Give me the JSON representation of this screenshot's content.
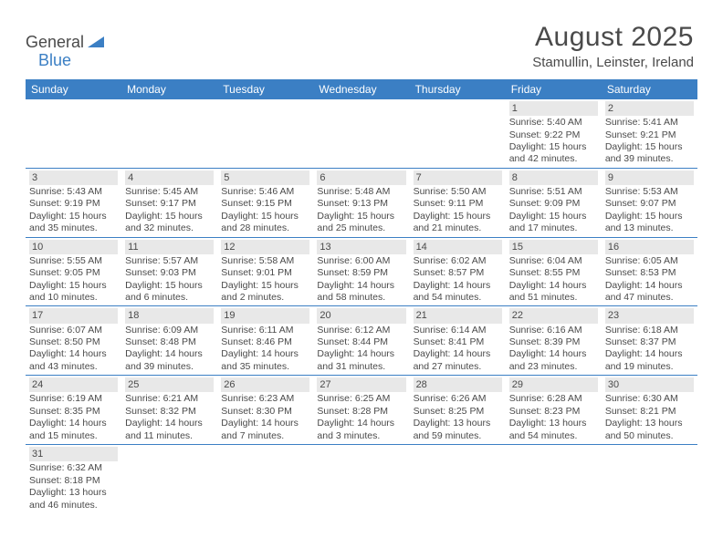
{
  "logo": {
    "part1": "General",
    "part2": "Blue"
  },
  "header": {
    "month": "August 2025",
    "location": "Stamullin, Leinster, Ireland"
  },
  "colors": {
    "accent": "#3b7fc4",
    "cell_num_bg": "#e8e8e8",
    "text": "#4a4a4a"
  },
  "day_names": [
    "Sunday",
    "Monday",
    "Tuesday",
    "Wednesday",
    "Thursday",
    "Friday",
    "Saturday"
  ],
  "weeks": [
    [
      {
        "n": "",
        "sr": "",
        "ss": "",
        "dl": ""
      },
      {
        "n": "",
        "sr": "",
        "ss": "",
        "dl": ""
      },
      {
        "n": "",
        "sr": "",
        "ss": "",
        "dl": ""
      },
      {
        "n": "",
        "sr": "",
        "ss": "",
        "dl": ""
      },
      {
        "n": "",
        "sr": "",
        "ss": "",
        "dl": ""
      },
      {
        "n": "1",
        "sr": "Sunrise: 5:40 AM",
        "ss": "Sunset: 9:22 PM",
        "dl": "Daylight: 15 hours and 42 minutes."
      },
      {
        "n": "2",
        "sr": "Sunrise: 5:41 AM",
        "ss": "Sunset: 9:21 PM",
        "dl": "Daylight: 15 hours and 39 minutes."
      }
    ],
    [
      {
        "n": "3",
        "sr": "Sunrise: 5:43 AM",
        "ss": "Sunset: 9:19 PM",
        "dl": "Daylight: 15 hours and 35 minutes."
      },
      {
        "n": "4",
        "sr": "Sunrise: 5:45 AM",
        "ss": "Sunset: 9:17 PM",
        "dl": "Daylight: 15 hours and 32 minutes."
      },
      {
        "n": "5",
        "sr": "Sunrise: 5:46 AM",
        "ss": "Sunset: 9:15 PM",
        "dl": "Daylight: 15 hours and 28 minutes."
      },
      {
        "n": "6",
        "sr": "Sunrise: 5:48 AM",
        "ss": "Sunset: 9:13 PM",
        "dl": "Daylight: 15 hours and 25 minutes."
      },
      {
        "n": "7",
        "sr": "Sunrise: 5:50 AM",
        "ss": "Sunset: 9:11 PM",
        "dl": "Daylight: 15 hours and 21 minutes."
      },
      {
        "n": "8",
        "sr": "Sunrise: 5:51 AM",
        "ss": "Sunset: 9:09 PM",
        "dl": "Daylight: 15 hours and 17 minutes."
      },
      {
        "n": "9",
        "sr": "Sunrise: 5:53 AM",
        "ss": "Sunset: 9:07 PM",
        "dl": "Daylight: 15 hours and 13 minutes."
      }
    ],
    [
      {
        "n": "10",
        "sr": "Sunrise: 5:55 AM",
        "ss": "Sunset: 9:05 PM",
        "dl": "Daylight: 15 hours and 10 minutes."
      },
      {
        "n": "11",
        "sr": "Sunrise: 5:57 AM",
        "ss": "Sunset: 9:03 PM",
        "dl": "Daylight: 15 hours and 6 minutes."
      },
      {
        "n": "12",
        "sr": "Sunrise: 5:58 AM",
        "ss": "Sunset: 9:01 PM",
        "dl": "Daylight: 15 hours and 2 minutes."
      },
      {
        "n": "13",
        "sr": "Sunrise: 6:00 AM",
        "ss": "Sunset: 8:59 PM",
        "dl": "Daylight: 14 hours and 58 minutes."
      },
      {
        "n": "14",
        "sr": "Sunrise: 6:02 AM",
        "ss": "Sunset: 8:57 PM",
        "dl": "Daylight: 14 hours and 54 minutes."
      },
      {
        "n": "15",
        "sr": "Sunrise: 6:04 AM",
        "ss": "Sunset: 8:55 PM",
        "dl": "Daylight: 14 hours and 51 minutes."
      },
      {
        "n": "16",
        "sr": "Sunrise: 6:05 AM",
        "ss": "Sunset: 8:53 PM",
        "dl": "Daylight: 14 hours and 47 minutes."
      }
    ],
    [
      {
        "n": "17",
        "sr": "Sunrise: 6:07 AM",
        "ss": "Sunset: 8:50 PM",
        "dl": "Daylight: 14 hours and 43 minutes."
      },
      {
        "n": "18",
        "sr": "Sunrise: 6:09 AM",
        "ss": "Sunset: 8:48 PM",
        "dl": "Daylight: 14 hours and 39 minutes."
      },
      {
        "n": "19",
        "sr": "Sunrise: 6:11 AM",
        "ss": "Sunset: 8:46 PM",
        "dl": "Daylight: 14 hours and 35 minutes."
      },
      {
        "n": "20",
        "sr": "Sunrise: 6:12 AM",
        "ss": "Sunset: 8:44 PM",
        "dl": "Daylight: 14 hours and 31 minutes."
      },
      {
        "n": "21",
        "sr": "Sunrise: 6:14 AM",
        "ss": "Sunset: 8:41 PM",
        "dl": "Daylight: 14 hours and 27 minutes."
      },
      {
        "n": "22",
        "sr": "Sunrise: 6:16 AM",
        "ss": "Sunset: 8:39 PM",
        "dl": "Daylight: 14 hours and 23 minutes."
      },
      {
        "n": "23",
        "sr": "Sunrise: 6:18 AM",
        "ss": "Sunset: 8:37 PM",
        "dl": "Daylight: 14 hours and 19 minutes."
      }
    ],
    [
      {
        "n": "24",
        "sr": "Sunrise: 6:19 AM",
        "ss": "Sunset: 8:35 PM",
        "dl": "Daylight: 14 hours and 15 minutes."
      },
      {
        "n": "25",
        "sr": "Sunrise: 6:21 AM",
        "ss": "Sunset: 8:32 PM",
        "dl": "Daylight: 14 hours and 11 minutes."
      },
      {
        "n": "26",
        "sr": "Sunrise: 6:23 AM",
        "ss": "Sunset: 8:30 PM",
        "dl": "Daylight: 14 hours and 7 minutes."
      },
      {
        "n": "27",
        "sr": "Sunrise: 6:25 AM",
        "ss": "Sunset: 8:28 PM",
        "dl": "Daylight: 14 hours and 3 minutes."
      },
      {
        "n": "28",
        "sr": "Sunrise: 6:26 AM",
        "ss": "Sunset: 8:25 PM",
        "dl": "Daylight: 13 hours and 59 minutes."
      },
      {
        "n": "29",
        "sr": "Sunrise: 6:28 AM",
        "ss": "Sunset: 8:23 PM",
        "dl": "Daylight: 13 hours and 54 minutes."
      },
      {
        "n": "30",
        "sr": "Sunrise: 6:30 AM",
        "ss": "Sunset: 8:21 PM",
        "dl": "Daylight: 13 hours and 50 minutes."
      }
    ],
    [
      {
        "n": "31",
        "sr": "Sunrise: 6:32 AM",
        "ss": "Sunset: 8:18 PM",
        "dl": "Daylight: 13 hours and 46 minutes."
      },
      {
        "n": "",
        "sr": "",
        "ss": "",
        "dl": ""
      },
      {
        "n": "",
        "sr": "",
        "ss": "",
        "dl": ""
      },
      {
        "n": "",
        "sr": "",
        "ss": "",
        "dl": ""
      },
      {
        "n": "",
        "sr": "",
        "ss": "",
        "dl": ""
      },
      {
        "n": "",
        "sr": "",
        "ss": "",
        "dl": ""
      },
      {
        "n": "",
        "sr": "",
        "ss": "",
        "dl": ""
      }
    ]
  ]
}
